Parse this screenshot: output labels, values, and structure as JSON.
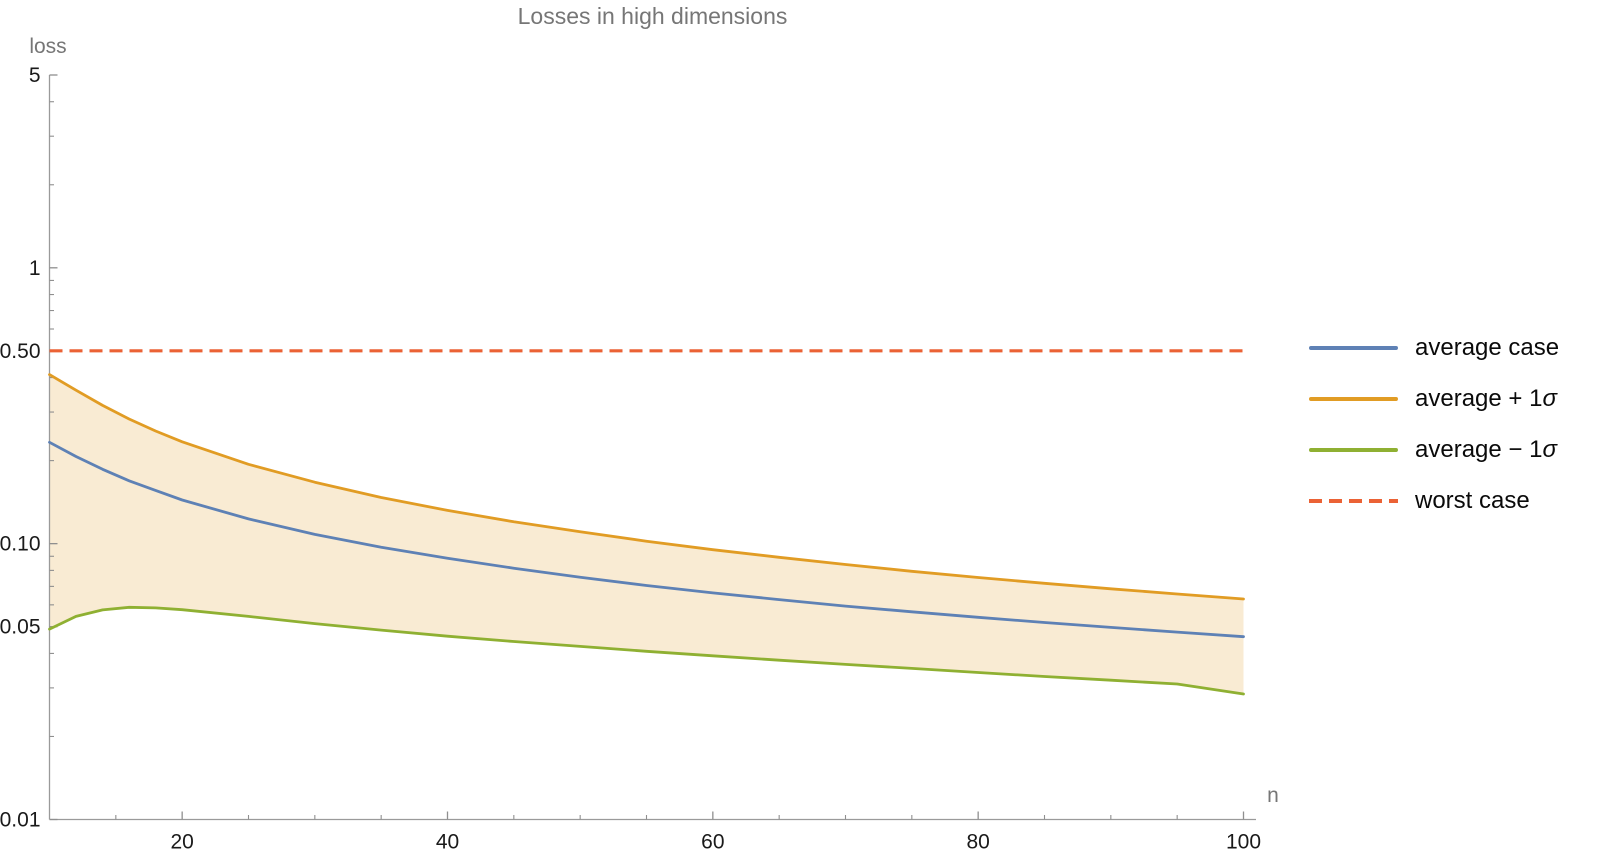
{
  "chart": {
    "title": "Losses in high dimensions",
    "y_axis_label": "loss",
    "x_axis_label": "n"
  },
  "legend": {
    "items": [
      {
        "id": "average-case",
        "label": "average case",
        "sigma": "",
        "color": "#5e81b5",
        "style": "solid"
      },
      {
        "id": "average-plus",
        "label": "average + 1",
        "sigma": "σ",
        "color": "#e19c24",
        "style": "solid"
      },
      {
        "id": "average-minus",
        "label": "average − 1",
        "sigma": "σ",
        "color": "#8fb032",
        "style": "solid"
      },
      {
        "id": "worst-case",
        "label": "worst case",
        "sigma": "",
        "color": "#eb6235",
        "style": "dashed"
      }
    ]
  },
  "chart_data": {
    "type": "line",
    "title": "Losses in high dimensions",
    "xlabel": "n",
    "ylabel": "loss",
    "x_scale": "linear",
    "y_scale": "log",
    "xlim": [
      10,
      100
    ],
    "ylim": [
      0.01,
      5
    ],
    "grid": false,
    "legend_position": "right-outside",
    "x": [
      10,
      12,
      14,
      16,
      18,
      20,
      25,
      30,
      35,
      40,
      45,
      50,
      55,
      60,
      65,
      70,
      75,
      80,
      85,
      90,
      95,
      100
    ],
    "series": [
      {
        "name": "average case",
        "color": "#5e81b5",
        "style": "solid",
        "width": 2.8,
        "values": [
          0.233,
          0.207,
          0.186,
          0.169,
          0.156,
          0.144,
          0.123,
          0.108,
          0.097,
          0.0885,
          0.0815,
          0.0755,
          0.0705,
          0.0663,
          0.0627,
          0.0594,
          0.0566,
          0.0541,
          0.0518,
          0.0497,
          0.0478,
          0.046
        ]
      },
      {
        "name": "average + 1σ",
        "color": "#e19c24",
        "style": "solid",
        "width": 2.8,
        "values": [
          0.41,
          0.36,
          0.317,
          0.283,
          0.256,
          0.234,
          0.194,
          0.167,
          0.147,
          0.132,
          0.12,
          0.1105,
          0.1021,
          0.0951,
          0.0892,
          0.084,
          0.0794,
          0.0754,
          0.0718,
          0.0686,
          0.0657,
          0.063
        ]
      },
      {
        "name": "average − 1σ",
        "color": "#8fb032",
        "style": "solid",
        "width": 2.8,
        "values": [
          0.049,
          0.0545,
          0.0575,
          0.0588,
          0.0585,
          0.0576,
          0.0545,
          0.0513,
          0.0486,
          0.0462,
          0.0442,
          0.0424,
          0.0407,
          0.0392,
          0.0378,
          0.0365,
          0.0353,
          0.0341,
          0.033,
          0.032,
          0.031,
          0.0285
        ]
      },
      {
        "name": "worst case",
        "color": "#eb6235",
        "style": "dashed",
        "width": 3.2,
        "x": [
          10,
          100
        ],
        "values": [
          0.5,
          0.5
        ]
      }
    ],
    "band": {
      "upper": "average + 1σ",
      "lower": "average − 1σ",
      "fill": "rgba(225,156,36,0.2)"
    },
    "x_ticks": {
      "major": [
        20,
        40,
        60,
        80,
        100
      ],
      "labels": [
        "20",
        "40",
        "60",
        "80",
        "100"
      ],
      "minor": [
        15,
        25,
        30,
        35,
        45,
        50,
        55,
        65,
        70,
        75,
        85,
        90,
        95
      ]
    },
    "y_ticks": {
      "major": [
        5,
        1,
        0.5,
        0.1,
        0.05,
        0.01
      ],
      "labels": [
        "5",
        "1",
        "0.50",
        "0.10",
        "0.05",
        "0.01"
      ],
      "minor": [
        4,
        3,
        2,
        0.9,
        0.8,
        0.7,
        0.6,
        0.4,
        0.3,
        0.2,
        0.09,
        0.08,
        0.07,
        0.06,
        0.04,
        0.03,
        0.02
      ]
    },
    "axis_color": "#9a9a9a",
    "tick_color": "#8f8f8f"
  }
}
